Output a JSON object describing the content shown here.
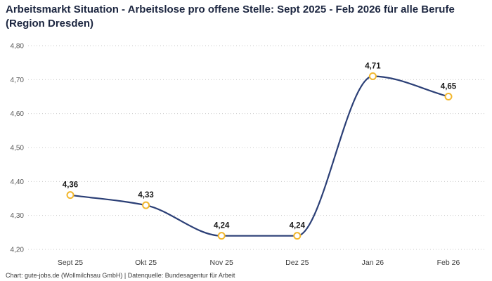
{
  "header": {
    "title": "Arbeitsmarkt Situation - Arbeitslose pro offene Stelle: Sept 2025 - Feb 2026 für alle Berufe (Region Dresden)"
  },
  "footer": {
    "credit": "Chart: gute-jobs.de (Wollmilchsau GmbH) | Datenquelle: Bundesagentur für Arbeit"
  },
  "chart_data": {
    "type": "line",
    "title": "Arbeitsmarkt Situation - Arbeitslose pro offene Stelle: Sept 2025 - Feb 2026 für alle Berufe (Region Dresden)",
    "categories": [
      "Sept 25",
      "Okt 25",
      "Nov 25",
      "Dez 25",
      "Jan 26",
      "Feb 26"
    ],
    "values": [
      4.36,
      4.33,
      4.24,
      4.24,
      4.71,
      4.65
    ],
    "value_labels": [
      "4,36",
      "4,33",
      "4,24",
      "4,24",
      "4,71",
      "4,65"
    ],
    "xlabel": "",
    "ylabel": "",
    "ylim": [
      4.2,
      4.8
    ],
    "ytick_step": 0.1,
    "ytick_labels": [
      "4,20",
      "4,30",
      "4,40",
      "4,50",
      "4,60",
      "4,70",
      "4,80"
    ],
    "grid": "horizontal-dotted",
    "legend": "none",
    "line_color": "#2b3f76",
    "marker_fill": "#ffffff",
    "marker_stroke": "#f2b72e",
    "label_color": "#1a1a1a",
    "grid_color": "#c9c9c9",
    "ytick_color": "#565656",
    "xtick_color": "#3c3c3c"
  }
}
